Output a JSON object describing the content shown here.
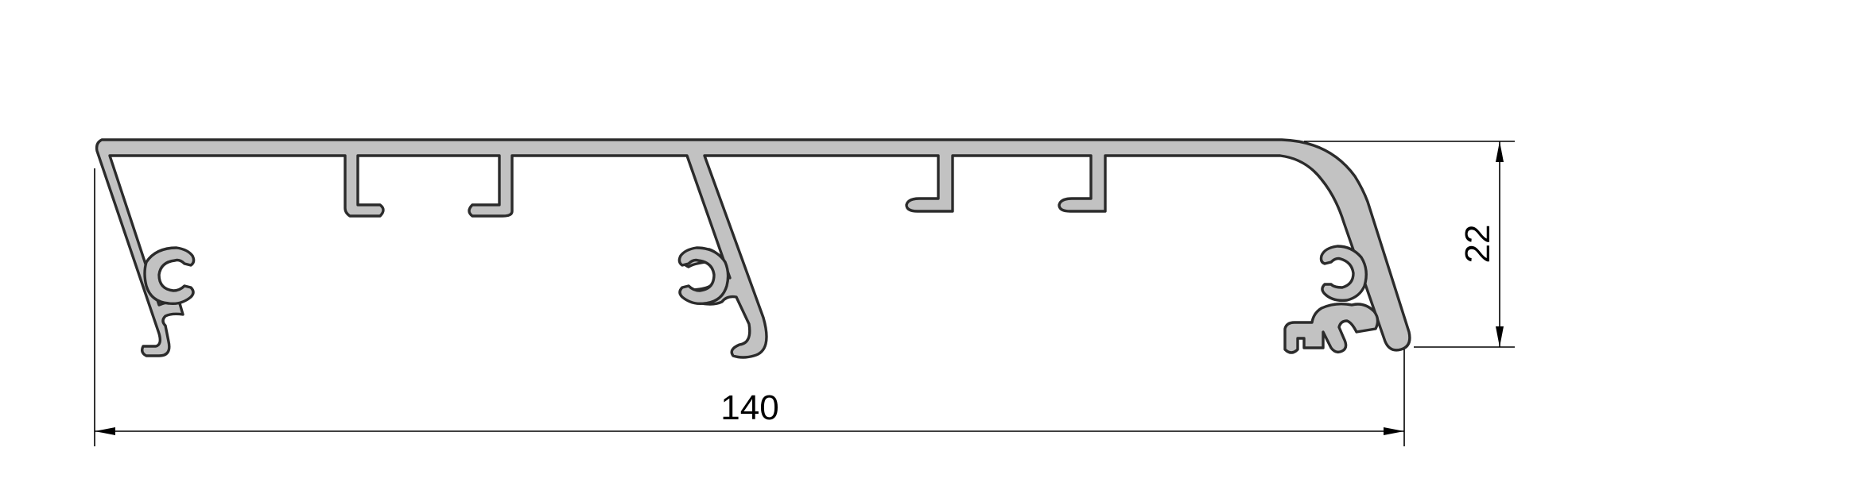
{
  "drawing": {
    "type": "aluminium extrusion profile cross-section",
    "profile_fill": "#c2c2c2",
    "profile_outline": "#2b2b2b",
    "dimension_color": "#000000"
  },
  "dimensions": {
    "width_label": "140",
    "height_label": "22"
  }
}
